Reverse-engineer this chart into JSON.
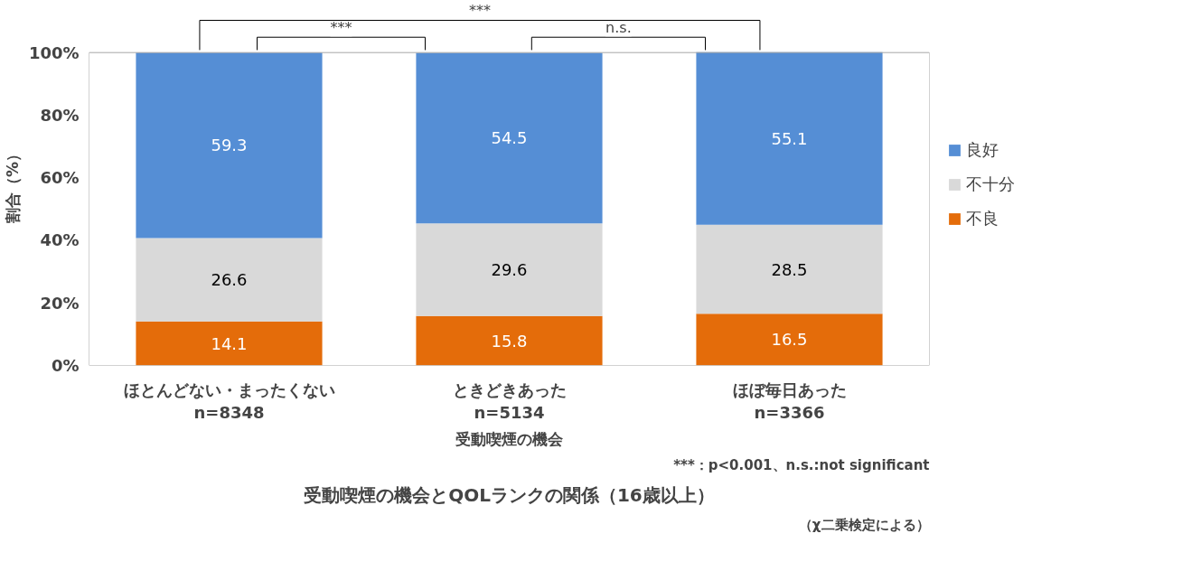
{
  "chart_data": {
    "type": "bar",
    "stacked": true,
    "title": "受動喫煙の機会とQOLランクの関係（16歳以上）",
    "xlabel": "受動喫煙の機会",
    "ylabel": "割合（%）",
    "categories": [
      "ほとんどない・まったくない\nn=8348",
      "ときどきあった\nn=5134",
      "ほぼ毎日あった\nn=3366"
    ],
    "series": [
      {
        "name": "不良",
        "color": "#e46c0a",
        "values": [
          14.1,
          15.8,
          16.5
        ]
      },
      {
        "name": "不十分",
        "color": "#d9d9d9",
        "values": [
          26.6,
          29.6,
          28.5
        ]
      },
      {
        "name": "良好",
        "color": "#558ed5",
        "values": [
          59.3,
          54.5,
          55.1
        ]
      }
    ],
    "ylim": [
      0,
      100
    ],
    "yticks": [
      {
        "value": 0,
        "label": "0%"
      },
      {
        "value": 20,
        "label": "20%"
      },
      {
        "value": 40,
        "label": "40%"
      },
      {
        "value": 60,
        "label": "60%"
      },
      {
        "value": 80,
        "label": "80%"
      },
      {
        "value": 100,
        "label": "100%"
      }
    ],
    "grid": false,
    "legend": "right",
    "data_labels": true,
    "annotations": [
      "***",
      "n.s.",
      "***",
      "***：p<0.001、n.s.:not significant",
      "（χ二乗検定による）"
    ]
  }
}
